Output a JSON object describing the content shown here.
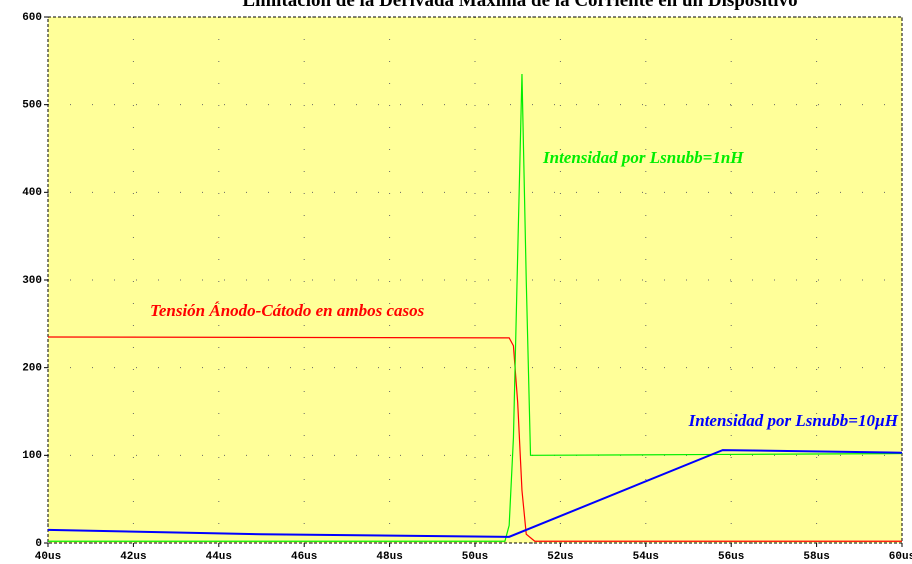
{
  "chart_data": {
    "type": "line",
    "title": "Limitación de la Derivada Máxima de la Corriente en un Dispositivo",
    "xlim": [
      40,
      60
    ],
    "ylim": [
      0,
      600
    ],
    "xticks": [
      {
        "value": 40,
        "label": "40us"
      },
      {
        "value": 42,
        "label": "42us"
      },
      {
        "value": 44,
        "label": "44us"
      },
      {
        "value": 46,
        "label": "46us"
      },
      {
        "value": 48,
        "label": "48us"
      },
      {
        "value": 50,
        "label": "50us"
      },
      {
        "value": 52,
        "label": "52us"
      },
      {
        "value": 54,
        "label": "54us"
      },
      {
        "value": 56,
        "label": "56us"
      },
      {
        "value": 58,
        "label": "58us"
      },
      {
        "value": 60,
        "label": "60us"
      }
    ],
    "yticks": [
      0,
      100,
      200,
      300,
      400,
      500,
      600
    ],
    "grid": true,
    "background": "#ffff99",
    "series": [
      {
        "name": "Tensión Ánodo-Cátodo en ambos casos",
        "color": "#ff0000",
        "x": [
          40,
          50.8,
          50.9,
          51.0,
          51.1,
          51.2,
          51.4,
          60
        ],
        "values": [
          235,
          234,
          225,
          160,
          60,
          10,
          2,
          2
        ]
      },
      {
        "name": "Intensidad por Lsnubb=1nH",
        "color": "#00ee00",
        "x": [
          40,
          50.7,
          50.8,
          50.9,
          51.0,
          51.1,
          51.2,
          51.3,
          55.8,
          60
        ],
        "values": [
          2,
          2,
          20,
          120,
          330,
          535,
          300,
          100,
          101,
          102
        ]
      },
      {
        "name": "Intensidad por Lsnubb=10µH",
        "color": "#0000ff",
        "x": [
          40,
          45,
          50.8,
          55.8,
          60
        ],
        "values": [
          15,
          10,
          7,
          106,
          103
        ]
      }
    ]
  }
}
